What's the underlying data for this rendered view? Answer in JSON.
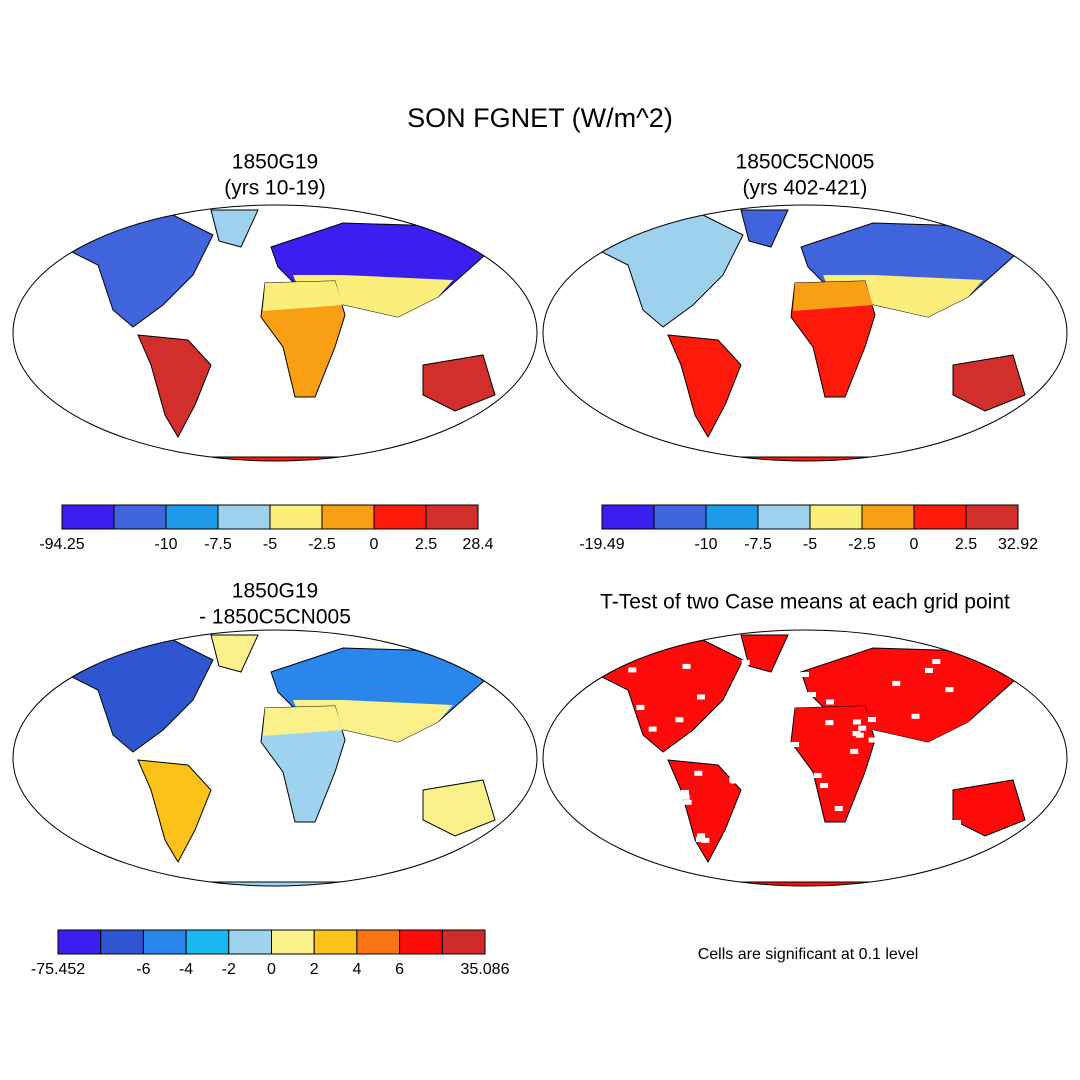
{
  "header": {
    "title": "SON FGNET (W/m^2)"
  },
  "panels": [
    {
      "title": [
        "1850G19",
        "(yrs 10-19)"
      ],
      "colorbar": {
        "colors": [
          "#3a1ff0",
          "#3f64dc",
          "#1e9aea",
          "#9ed1ee",
          "#fbef7b",
          "#f89f14",
          "#fd1a0b",
          "#d22f2c"
        ],
        "labels": [
          "-94.25",
          null,
          "-10",
          "-7.5",
          "-5",
          "-2.5",
          "0",
          "2.5",
          "28.4"
        ]
      }
    },
    {
      "title": [
        "1850C5CN005",
        "(yrs 402-421)"
      ],
      "colorbar": {
        "colors": [
          "#3a1ff0",
          "#3f64dc",
          "#1e9aea",
          "#9ed1ee",
          "#fbef7b",
          "#f89f14",
          "#fd1a0b",
          "#d22f2c"
        ],
        "labels": [
          "-19.49",
          null,
          "-10",
          "-7.5",
          "-5",
          "-2.5",
          "0",
          "2.5",
          "32.92"
        ]
      }
    },
    {
      "title": [
        "1850G19",
        "- 1850C5CN005"
      ],
      "colorbar": {
        "colors": [
          "#3a1ff0",
          "#2f55d0",
          "#2a86ea",
          "#19b8f2",
          "#9dd3ef",
          "#fbf18a",
          "#fbc21a",
          "#fb7416",
          "#fd0b0b",
          "#cf2b2b"
        ],
        "labels": [
          "-75.452",
          null,
          "-6",
          "-4",
          "-2",
          "0",
          "2",
          "4",
          "6",
          null,
          "35.086"
        ]
      }
    },
    {
      "title": [
        "T-Test of two Case means at each grid point"
      ],
      "note": "Cells are significant at 0.1 level"
    }
  ]
}
